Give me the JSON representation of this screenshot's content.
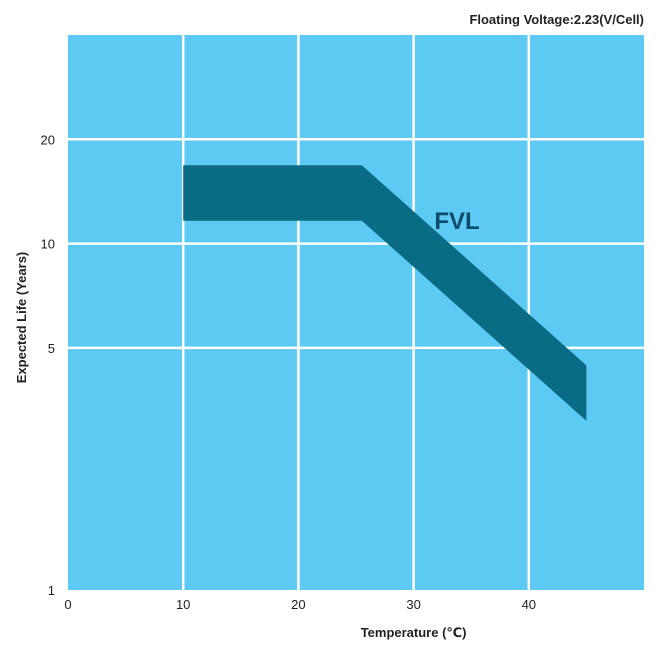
{
  "chart_data": {
    "type": "line",
    "title": "",
    "annotation": "Floating Voltage:2.23(V/Cell)",
    "xlabel": "Temperature (℃)",
    "ylabel": "Expected Life (Years)",
    "xlim": [
      0,
      50
    ],
    "ylim": [
      1,
      40
    ],
    "y_scale": "log",
    "x_ticks": [
      0,
      10,
      20,
      30,
      40
    ],
    "y_ticks": [
      1,
      5,
      10,
      20
    ],
    "grid": true,
    "series": [
      {
        "name": "FVL",
        "x": [
          10,
          25.5,
          45
        ],
        "y": [
          14,
          14,
          3.7
        ]
      }
    ],
    "colors": {
      "plot_background": "#5ccaf2",
      "grid": "#ffffff",
      "series": "#0a6b85"
    }
  }
}
